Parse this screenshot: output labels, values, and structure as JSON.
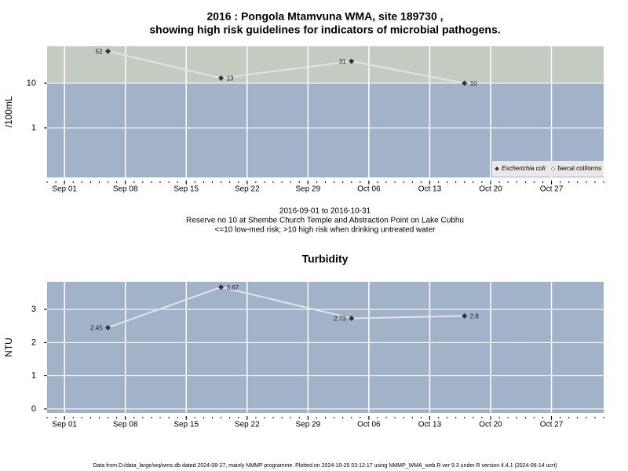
{
  "chart_data": [
    {
      "type": "line",
      "title": [
        "2016 : Pongola Mtamvuna WMA, site 189730 ,",
        "showing high risk guidelines for indicators of microbial pathogens."
      ],
      "subtitle": [
        "2016-09-01 to 2016-10-31",
        "Reserve no 10 at Shembe Church Temple and Abstraction Point on Lake Cubhu",
        "<=10 low-med risk; >10 high risk when drinking untreated water"
      ],
      "ylabel": "/100mL",
      "log": true,
      "threshold": 10,
      "low_color": "#a2b2c9",
      "high_color": "#c4ccc1",
      "x": [
        "2016-09-06",
        "2016-09-19",
        "2016-10-04",
        "2016-10-17"
      ],
      "series": [
        {
          "name": "Escherichia coli",
          "color": "#333333",
          "line_color": "#e4e4e4",
          "values": [
            52,
            13,
            31,
            10
          ]
        },
        {
          "name": "faecal coliforms",
          "color": "#ffffff",
          "line_color": "#e4e4e4",
          "values": [
            null,
            null,
            null,
            null
          ]
        }
      ],
      "xlim": [
        "2016-08-30",
        "2016-11-02"
      ],
      "xticks": [
        {
          "value": "2016-09-01",
          "label": "Sep 01"
        },
        {
          "value": "2016-09-08",
          "label": "Sep 08"
        },
        {
          "value": "2016-09-15",
          "label": "Sep 15"
        },
        {
          "value": "2016-09-22",
          "label": "Sep 22"
        },
        {
          "value": "2016-09-29",
          "label": "Sep 29"
        },
        {
          "value": "2016-10-06",
          "label": "Oct 06"
        },
        {
          "value": "2016-10-13",
          "label": "Oct 13"
        },
        {
          "value": "2016-10-20",
          "label": "Oct 20"
        },
        {
          "value": "2016-10-27",
          "label": "Oct 27"
        }
      ],
      "ylim": [
        0.078,
        67
      ],
      "yticks": [
        1,
        10
      ],
      "grid": true,
      "legend": "bottom-right"
    },
    {
      "type": "line",
      "title": [
        "Turbidity"
      ],
      "ylabel": "NTU",
      "log": false,
      "low_color": "#a2b2c9",
      "x": [
        "2016-09-06",
        "2016-09-19",
        "2016-10-04",
        "2016-10-17"
      ],
      "series": [
        {
          "color": "#333333",
          "line_color": "#e4e4e4",
          "values": [
            2.45,
            3.67,
            2.73,
            2.8
          ]
        }
      ],
      "xlim": [
        "2016-08-30",
        "2016-11-02"
      ],
      "xticks": [
        {
          "value": "2016-09-01",
          "label": "Sep 01"
        },
        {
          "value": "2016-09-08",
          "label": "Sep 08"
        },
        {
          "value": "2016-09-15",
          "label": "Sep 15"
        },
        {
          "value": "2016-09-22",
          "label": "Sep 22"
        },
        {
          "value": "2016-09-29",
          "label": "Sep 29"
        },
        {
          "value": "2016-10-06",
          "label": "Oct 06"
        },
        {
          "value": "2016-10-13",
          "label": "Oct 13"
        },
        {
          "value": "2016-10-20",
          "label": "Oct 20"
        },
        {
          "value": "2016-10-27",
          "label": "Oct 27"
        }
      ],
      "ylim": [
        -0.12,
        3.83
      ],
      "yticks": [
        0,
        1,
        2,
        3
      ],
      "grid": true
    }
  ],
  "footer": "Data from D:/data_large/wq/wms.db dated 2024-08-27, mainly NMMP programme. Plotted on 2024-10-25 03:12:17 using NMMP_WMA_web.R ver 9.3 under R version 4.4.1 (2024-06-14 ucrt)"
}
